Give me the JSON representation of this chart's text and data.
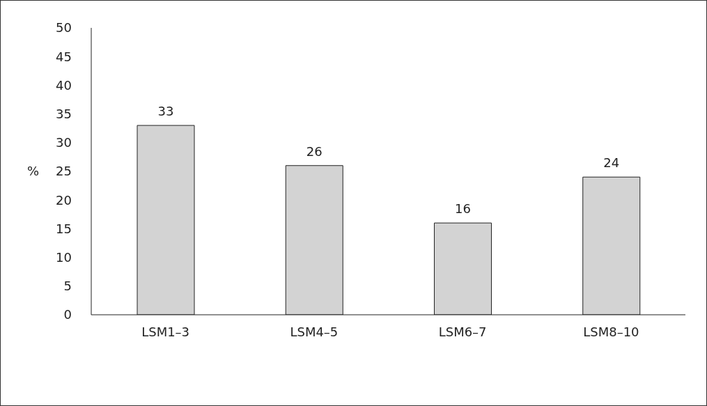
{
  "chart_data": {
    "type": "bar",
    "ylabel": "%",
    "categories": [
      "LSM1–3",
      "LSM4–5",
      "LSM6–7",
      "LSM8–10"
    ],
    "values": [
      33,
      26,
      16,
      24
    ],
    "color": "#d3d3d3",
    "ylim": [
      0,
      50
    ],
    "yticks": [
      0,
      5,
      10,
      15,
      20,
      25,
      30,
      35,
      40,
      45,
      50
    ],
    "grid": false,
    "data_labels": true,
    "legend": false
  }
}
